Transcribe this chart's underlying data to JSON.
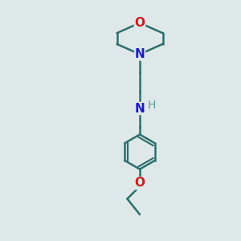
{
  "bg_color": "#dfe8e8",
  "bond_color": "#2d6e6e",
  "N_color": "#1a1acc",
  "O_color": "#cc1a1a",
  "H_color": "#5a9a9a",
  "line_width": 1.8,
  "font_size": 11,
  "fig_w": 3.0,
  "fig_h": 3.0,
  "dpi": 100,
  "xlim": [
    0,
    10
  ],
  "ylim": [
    0,
    10
  ]
}
